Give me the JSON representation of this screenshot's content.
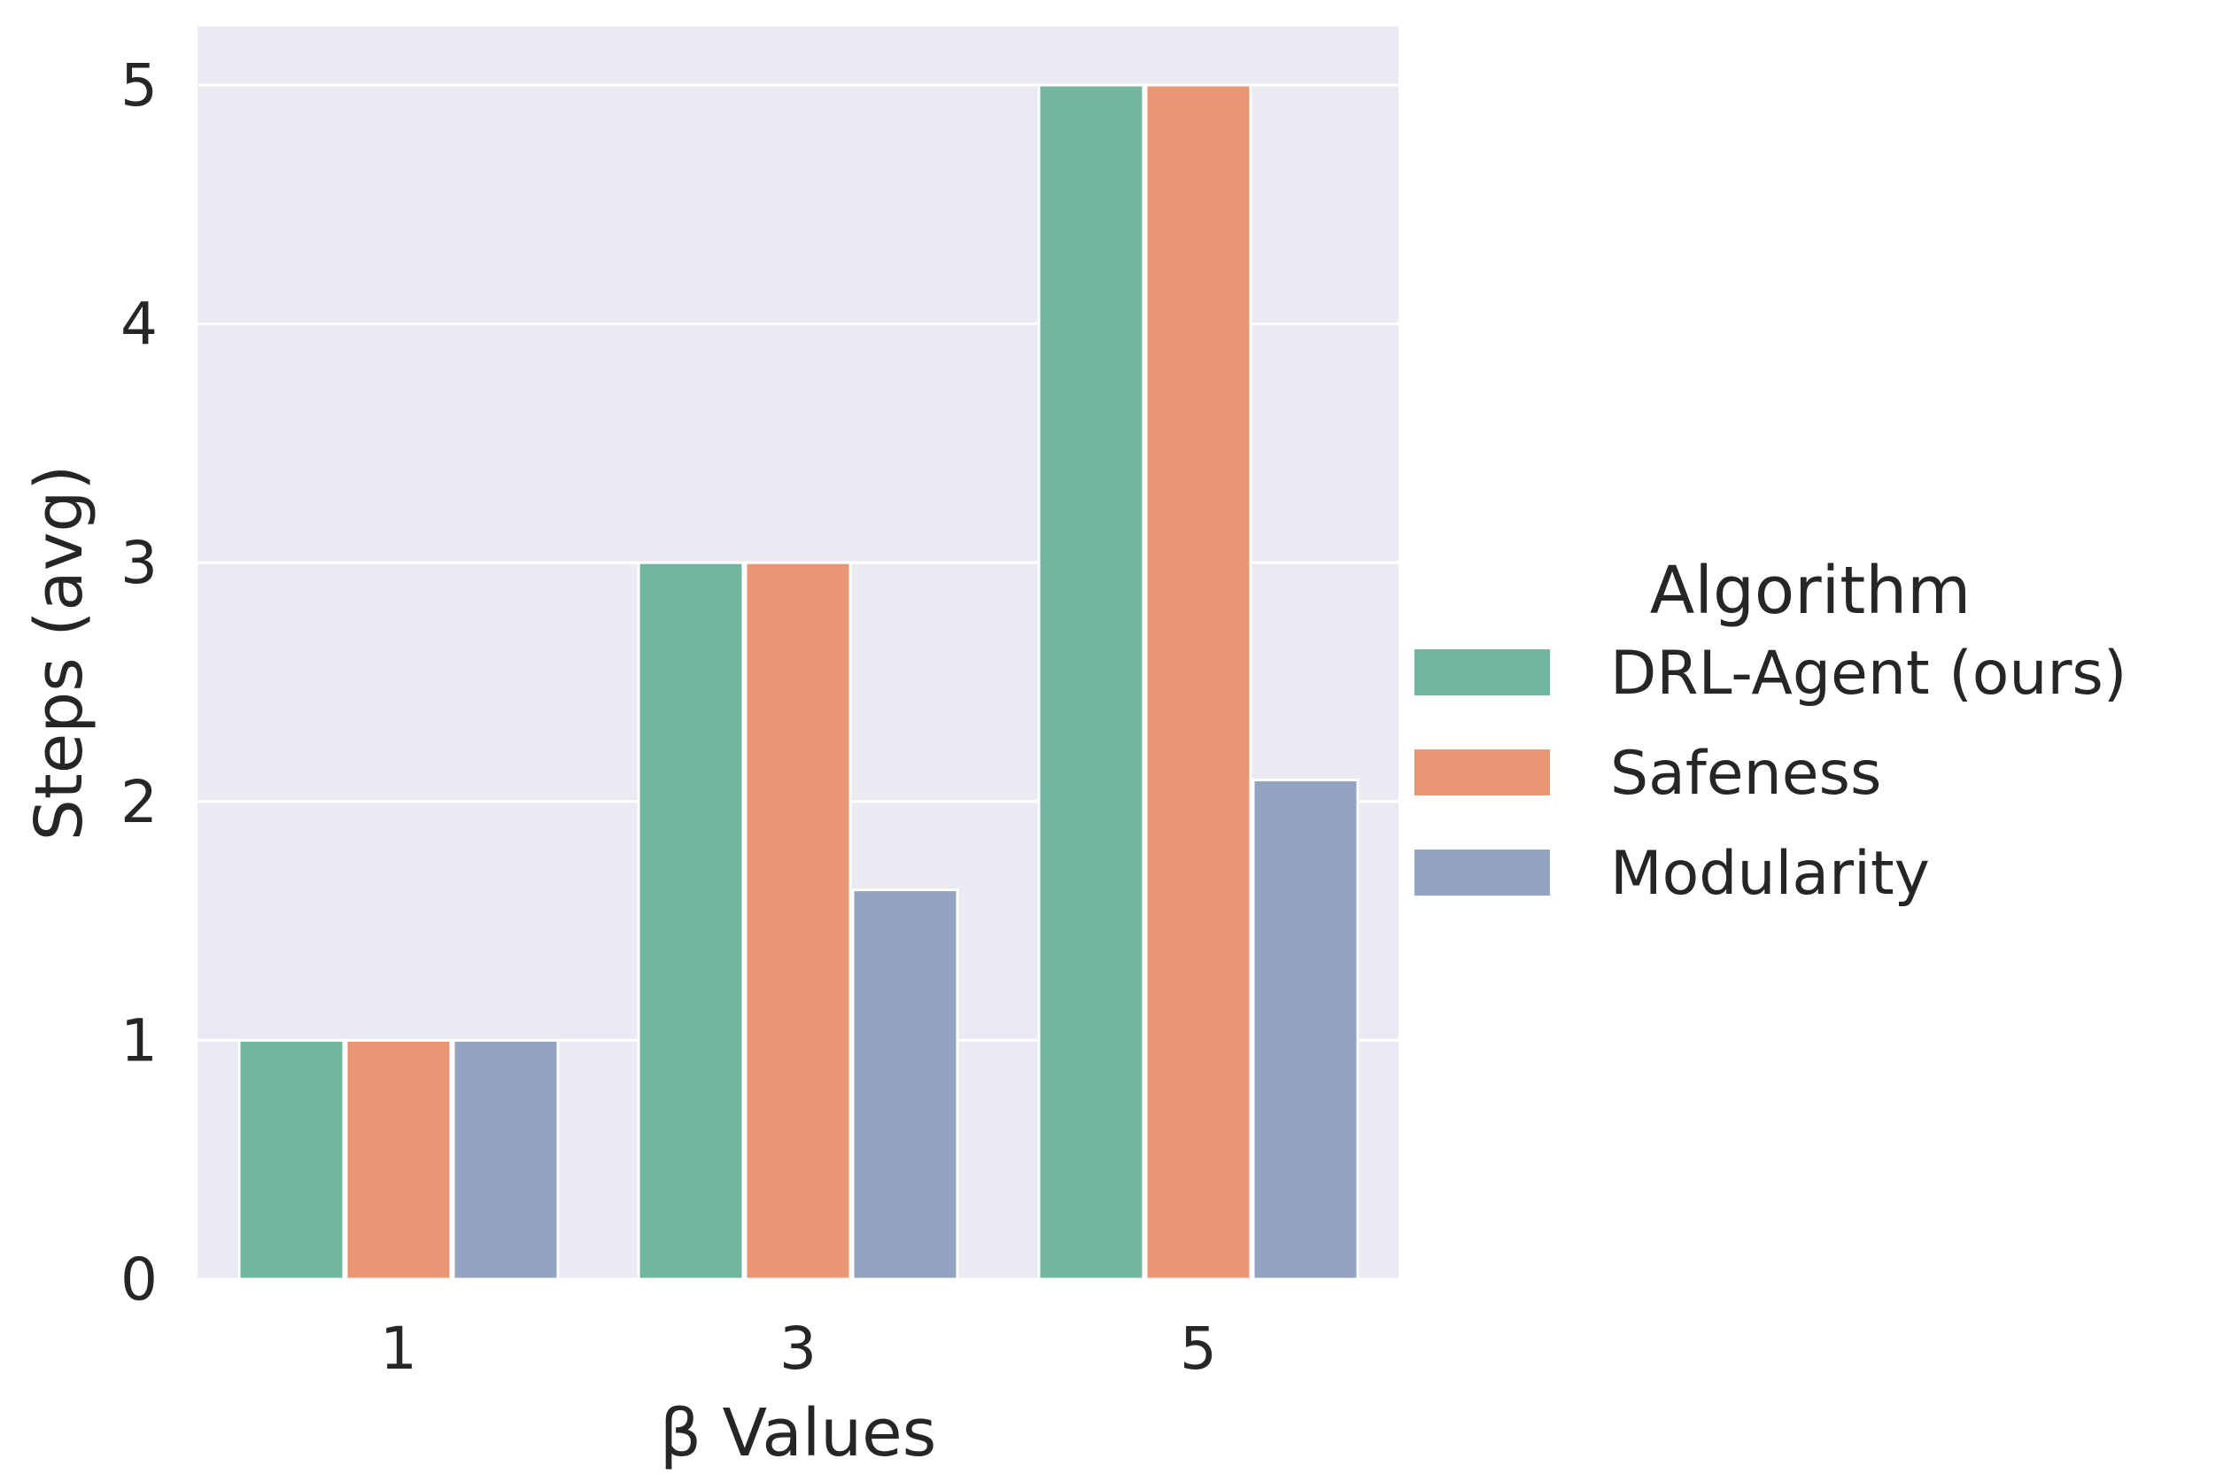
{
  "chart_data": {
    "type": "bar",
    "xlabel": "β Values",
    "ylabel": "Steps (avg)",
    "categories": [
      "1",
      "3",
      "5"
    ],
    "series": [
      {
        "name": "DRL-Agent (ours)",
        "values": [
          1,
          3,
          5
        ],
        "color": "#72b6a1"
      },
      {
        "name": "Safeness",
        "values": [
          1,
          3,
          5
        ],
        "color": "#e99675"
      },
      {
        "name": "Modularity",
        "values": [
          1,
          1.63,
          2.09
        ],
        "color": "#95a3c3"
      }
    ],
    "ylim": [
      0,
      5.25
    ],
    "yticks": [
      "0",
      "1",
      "2",
      "3",
      "4",
      "5"
    ],
    "grid": true,
    "legend": {
      "title": "Algorithm",
      "placement": "right"
    },
    "colors": {
      "plot_background": "#eaeaf2",
      "grid": "#ffffff",
      "text": "#262626"
    }
  }
}
